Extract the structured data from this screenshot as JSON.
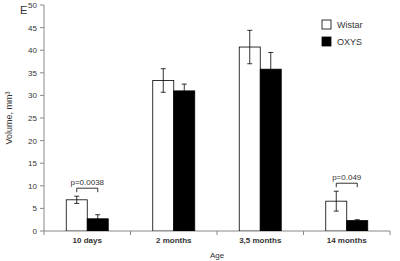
{
  "chart_data": {
    "type": "bar",
    "panel_label": "E",
    "x_label": "Age",
    "y_label": "Volume, mm³",
    "categories": [
      "10 days",
      "2 months",
      "3,5 months",
      "14 months"
    ],
    "series": [
      {
        "name": "Wistar",
        "color": "#ffffff",
        "values": [
          6.9,
          33.3,
          40.7,
          6.6
        ],
        "errors": [
          0.8,
          2.6,
          3.7,
          2.2
        ]
      },
      {
        "name": "OXYS",
        "color": "#000000",
        "values": [
          2.7,
          31.0,
          35.8,
          2.3
        ],
        "errors": [
          0.9,
          1.5,
          3.7,
          0.2
        ]
      }
    ],
    "annotations": [
      {
        "text": "p=0.0038",
        "category": "10 days"
      },
      {
        "text": "p=0.049",
        "category": "14 months"
      }
    ],
    "ylim": [
      0,
      50
    ],
    "yticks": [
      0,
      5,
      10,
      15,
      20,
      25,
      30,
      35,
      40,
      45,
      50
    ],
    "grid": false,
    "legend": "top-right"
  }
}
